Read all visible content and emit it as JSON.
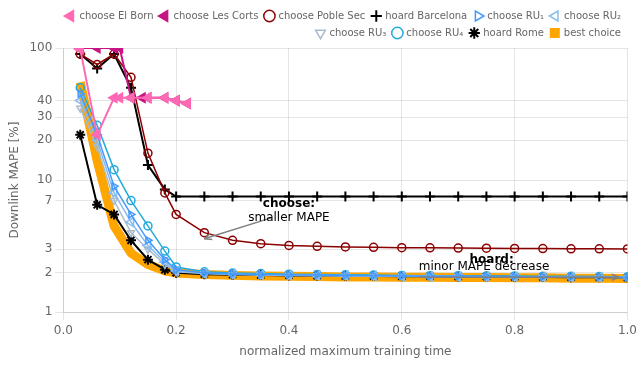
{
  "chart_data": {
    "type": "line",
    "xlabel": "normalized maximum training time",
    "ylabel": "Downlink MAPE [%]",
    "log": "y",
    "xlim": [
      0,
      1.0
    ],
    "ylim": [
      1,
      100
    ],
    "xticks": [
      {
        "value": 0,
        "label": "0.0"
      },
      0.2,
      0.4,
      0.6,
      0.8,
      {
        "value": 1.0,
        "label": "1.0"
      }
    ],
    "yticks": [
      1,
      2,
      3,
      7,
      10,
      20,
      30,
      40,
      100
    ],
    "grid": true,
    "legend": "upper right",
    "series": [
      {
        "name": "best choice",
        "color": "#FFA500",
        "marker": "band",
        "x": [
          0.03,
          0.06,
          0.09,
          0.12,
          0.15,
          0.18,
          0.2,
          0.25,
          0.3,
          0.35,
          0.4,
          0.45,
          0.5,
          0.55,
          0.6,
          0.65,
          0.7,
          0.75,
          0.8,
          0.85,
          0.9,
          0.95,
          1.0
        ],
        "values": [
          55,
          14,
          4.5,
          2.8,
          2.3,
          2.05,
          1.98,
          1.93,
          1.9,
          1.88,
          1.87,
          1.86,
          1.85,
          1.85,
          1.84,
          1.84,
          1.83,
          1.83,
          1.82,
          1.82,
          1.81,
          1.81,
          1.8
        ]
      },
      {
        "name": "choose El Born",
        "color": "#FF69B4",
        "marker": "triangle_left",
        "x": [
          0.03,
          0.06,
          0.09,
          0.1,
          0.12,
          0.15,
          0.18,
          0.2,
          0.22
        ],
        "values": [
          98,
          22,
          42,
          42,
          42,
          42,
          42,
          40,
          38
        ]
      },
      {
        "name": "choose Les Corts",
        "color": "#C71585",
        "marker": "triangle_left",
        "x": [
          0.03,
          0.06,
          0.09,
          0.1,
          0.12,
          0.14,
          0.15,
          0.18,
          0.2,
          0.22
        ],
        "values": [
          100,
          100,
          100,
          100,
          42,
          42,
          42,
          42,
          40,
          38
        ]
      },
      {
        "name": "choose Poble Sec",
        "color": "#8B0000",
        "marker": "circle_open",
        "x": [
          0.03,
          0.06,
          0.09,
          0.12,
          0.15,
          0.18,
          0.2,
          0.25,
          0.3,
          0.35,
          0.4,
          0.45,
          0.5,
          0.55,
          0.6,
          0.65,
          0.7,
          0.75,
          0.8,
          0.85,
          0.9,
          0.95,
          1.0
        ],
        "values": [
          90,
          75,
          90,
          60,
          16,
          8.0,
          5.5,
          4.0,
          3.5,
          3.3,
          3.2,
          3.15,
          3.12,
          3.1,
          3.08,
          3.07,
          3.06,
          3.05,
          3.04,
          3.03,
          3.02,
          3.02,
          3.01
        ]
      },
      {
        "name": "hoard Barcelona",
        "color": "#000000",
        "marker": "plus",
        "x": [
          0.03,
          0.06,
          0.09,
          0.12,
          0.15,
          0.18,
          0.2,
          0.25,
          0.3,
          0.35,
          0.4,
          0.45,
          0.5,
          0.55,
          0.6,
          0.65,
          0.7,
          0.75,
          0.8,
          0.85,
          0.9,
          0.95,
          1.0
        ],
        "values": [
          90,
          70,
          90,
          50,
          13,
          8.5,
          7.5,
          7.5,
          7.5,
          7.5,
          7.5,
          7.5,
          7.5,
          7.5,
          7.5,
          7.5,
          7.5,
          7.5,
          7.5,
          7.5,
          7.5,
          7.5,
          7.5
        ]
      },
      {
        "name": "choose RU₁",
        "color": "#4499FF",
        "marker": "triangle_right_open",
        "x": [
          0.03,
          0.06,
          0.09,
          0.12,
          0.15,
          0.18,
          0.2,
          0.25,
          0.3,
          0.35,
          0.4,
          0.45,
          0.5,
          0.55,
          0.6,
          0.65,
          0.7,
          0.75,
          0.8,
          0.85,
          0.9,
          0.95,
          1.0
        ],
        "values": [
          45,
          22,
          9,
          5.5,
          3.5,
          2.5,
          2.1,
          1.98,
          1.95,
          1.93,
          1.92,
          1.91,
          1.9,
          1.89,
          1.88,
          1.87,
          1.87,
          1.86,
          1.86,
          1.85,
          1.85,
          1.84,
          1.83
        ]
      },
      {
        "name": "choose RU₂",
        "color": "#88BBEE",
        "marker": "triangle_left_open",
        "x": [
          0.03,
          0.06,
          0.09,
          0.12,
          0.15,
          0.18,
          0.2,
          0.25,
          0.3,
          0.35,
          0.4,
          0.45,
          0.5,
          0.55,
          0.6,
          0.65,
          0.7,
          0.75,
          0.8,
          0.85,
          0.9,
          0.95,
          1.0
        ],
        "values": [
          40,
          20,
          8,
          4.8,
          3.2,
          2.4,
          2.05,
          1.97,
          1.94,
          1.92,
          1.91,
          1.9,
          1.89,
          1.88,
          1.87,
          1.87,
          1.86,
          1.86,
          1.85,
          1.85,
          1.84,
          1.84,
          1.83
        ]
      },
      {
        "name": "choose RU₃",
        "color": "#AABBCC",
        "marker": "triangle_down_open",
        "x": [
          0.03,
          0.06,
          0.09,
          0.12,
          0.15,
          0.18,
          0.2,
          0.25,
          0.3,
          0.35,
          0.4,
          0.45,
          0.5,
          0.55,
          0.6,
          0.65,
          0.7,
          0.75,
          0.8,
          0.85,
          0.9,
          0.95,
          1.0
        ],
        "values": [
          35,
          18,
          7,
          4.0,
          3.0,
          2.3,
          2.02,
          1.96,
          1.93,
          1.91,
          1.9,
          1.89,
          1.88,
          1.87,
          1.87,
          1.86,
          1.86,
          1.85,
          1.85,
          1.84,
          1.84,
          1.83,
          1.83
        ]
      },
      {
        "name": "choose RU₄",
        "color": "#22AADD",
        "marker": "circle_open",
        "x": [
          0.03,
          0.06,
          0.09,
          0.12,
          0.15,
          0.18,
          0.2,
          0.25,
          0.3,
          0.35,
          0.4,
          0.45,
          0.5,
          0.55,
          0.6,
          0.65,
          0.7,
          0.75,
          0.8,
          0.85,
          0.9,
          0.95,
          1.0
        ],
        "values": [
          50,
          26,
          12,
          7,
          4.5,
          2.9,
          2.2,
          2.02,
          1.98,
          1.96,
          1.94,
          1.93,
          1.92,
          1.91,
          1.9,
          1.89,
          1.89,
          1.88,
          1.88,
          1.87,
          1.87,
          1.86,
          1.85
        ]
      },
      {
        "name": "hoard Rome",
        "color": "#000000",
        "marker": "star",
        "x": [
          0.03,
          0.06,
          0.09,
          0.12,
          0.15,
          0.18,
          0.2,
          0.25,
          0.3,
          0.35,
          0.4,
          0.45,
          0.5,
          0.55,
          0.6,
          0.65,
          0.7,
          0.75,
          0.8,
          0.85,
          0.9,
          0.95,
          1.0
        ],
        "values": [
          22,
          6.5,
          5.5,
          3.5,
          2.5,
          2.1,
          1.99,
          1.94,
          1.92,
          1.91,
          1.9,
          1.89,
          1.88,
          1.88,
          1.87,
          1.87,
          1.86,
          1.86,
          1.85,
          1.85,
          1.84,
          1.84,
          1.83
        ]
      }
    ],
    "annotations": [
      {
        "text": "choose:",
        "x": 0.4,
        "y": 6.0,
        "align": "center",
        "bold": true
      },
      {
        "text": "smaller MAPE",
        "x": 0.4,
        "y": 4.7,
        "align": "center"
      },
      {
        "text": "hoard:",
        "x": 0.72,
        "y": 2.25,
        "align": "left",
        "bold": true
      },
      {
        "text": "minor MAPE decrease",
        "x": 0.63,
        "y": 2.0,
        "align": "left"
      }
    ],
    "arrows": [
      {
        "from": [
          0.37,
          5.2
        ],
        "to": [
          0.25,
          3.6
        ]
      },
      {
        "from": [
          0.63,
          1.84
        ],
        "to": [
          0.985,
          1.84
        ]
      }
    ]
  }
}
